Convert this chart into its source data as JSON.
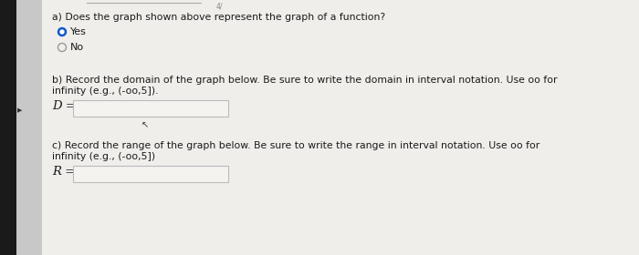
{
  "background_color": "#d8d8d8",
  "content_bg": "#f0eeeb",
  "left_bar_color": "#1a1a1a",
  "left_sidebar_color": "#c8c8c8",
  "text_color": "#1a1a1a",
  "question_a": "a) Does the graph shown above represent the graph of a function?",
  "option_yes": "Yes",
  "option_no": "No",
  "question_b_line1": "b) Record the domain of the graph below. Be sure to write the domain in interval notation. Use oo for",
  "question_b_line2": "infinity (e.g., (-oo,5]).",
  "label_d": "D =",
  "question_c_line1": "c) Record the range of the graph below. Be sure to write the range in interval notation. Use oo for",
  "question_c_line2": "infinity (e.g., (-oo,5])",
  "label_r": "R =",
  "radio_yes_fill": "#1155cc",
  "radio_yes_border": "#1155cc",
  "radio_no_color": "#999999",
  "input_box_color": "#f5f3f0",
  "input_box_border": "#bbbbbb",
  "font_size_question": 7.8,
  "font_size_label": 9.5,
  "font_size_option": 8.0,
  "top_line_color": "#aaaaaa",
  "cursor_color": "#333333"
}
